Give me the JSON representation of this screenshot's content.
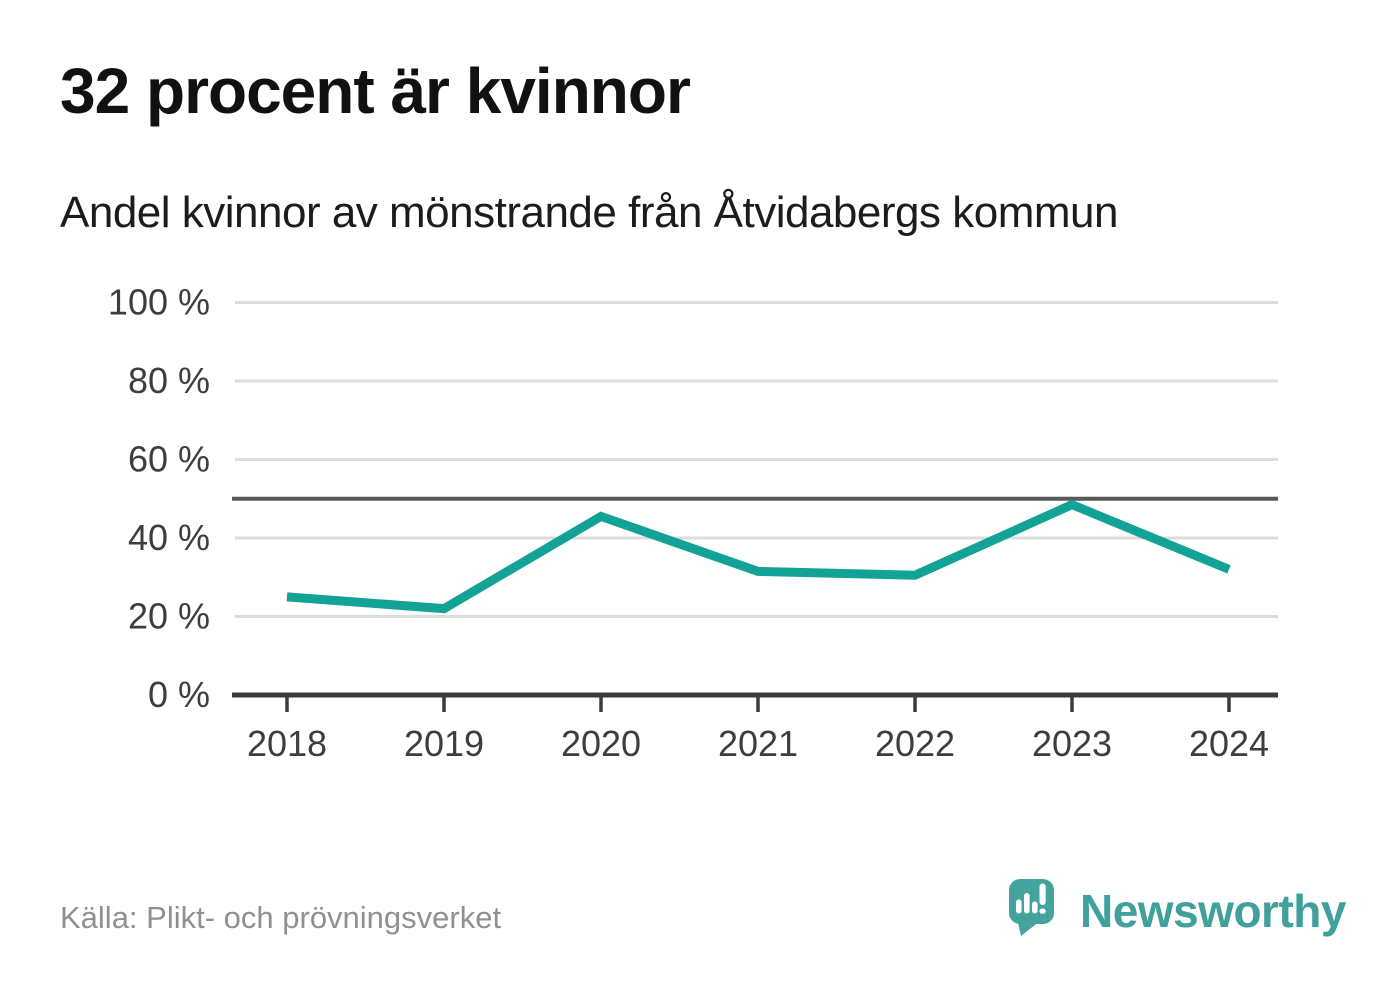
{
  "header": {
    "title": "32 procent är kvinnor",
    "subtitle": "Andel kvinnor av mönstrande från Åtvidabergs kommun"
  },
  "chart_data": {
    "type": "line",
    "title": "32 procent är kvinnor",
    "subtitle": "Andel kvinnor av mönstrande från Åtvidabergs kommun",
    "x": [
      2018,
      2019,
      2020,
      2021,
      2022,
      2023,
      2024
    ],
    "xtick_labels": [
      "2018",
      "2019",
      "2020",
      "2021",
      "2022",
      "2023",
      "2024"
    ],
    "series": [
      {
        "name": "Andel kvinnor av mönstrande",
        "values": [
          25,
          22,
          45.5,
          31.5,
          30.5,
          48.5,
          32
        ]
      }
    ],
    "unit": "%",
    "ylim": [
      0,
      100
    ],
    "yticks": [
      0,
      20,
      40,
      60,
      80,
      100
    ],
    "ytick_labels": [
      "0 %",
      "20 %",
      "40 %",
      "60 %",
      "80 %",
      "100 %"
    ],
    "reference_line": {
      "value": 50
    },
    "grid": "horizontal",
    "legend": "none"
  },
  "footer": {
    "source": "Källa: Plikt- och prövningsverket",
    "brand": "Newsworthy"
  },
  "colors": {
    "line": "#12a296",
    "brand_teal": "#45a39e",
    "axis": "#3b3b3b",
    "grid": "#dcdcdc",
    "reference": "#595959",
    "tick_label": "#3d3d3d",
    "source_text": "#909090",
    "title_text": "#111111"
  }
}
